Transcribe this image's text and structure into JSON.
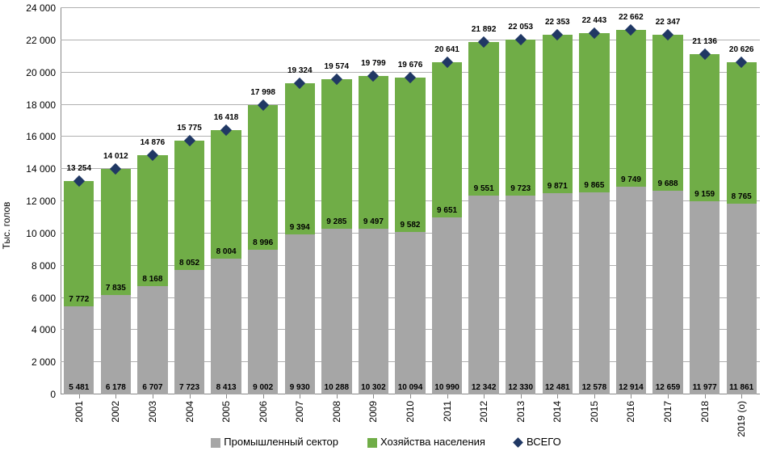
{
  "chart": {
    "type": "stacked-bar-with-marker",
    "y_axis_label": "Тыс. голов",
    "ylim": [
      0,
      24000
    ],
    "ytick_step": 2000,
    "y_tick_labels": [
      "0",
      "2 000",
      "4 000",
      "6 000",
      "8 000",
      "10 000",
      "12 000",
      "14 000",
      "16 000",
      "18 000",
      "20 000",
      "22 000",
      "24 000"
    ],
    "grid_color": "#b0b0b0",
    "background_color": "#ffffff",
    "bar_gap_ratio": 0.18,
    "label_fontsize": 12,
    "value_fontsize": 10,
    "categories": [
      "2001",
      "2002",
      "2003",
      "2004",
      "2005",
      "2006",
      "2007",
      "2008",
      "2009",
      "2010",
      "2011",
      "2012",
      "2013",
      "2014",
      "2015",
      "2016",
      "2017",
      "2018",
      "2019 (о)"
    ],
    "series": [
      {
        "name": "Промышленный сектор",
        "color": "#a6a6a6",
        "values": [
          5481,
          6178,
          6707,
          7723,
          8413,
          9002,
          9930,
          10288,
          10302,
          10094,
          10990,
          12342,
          12330,
          12481,
          12578,
          12914,
          12659,
          11977,
          11861
        ],
        "labels": [
          "5 481",
          "6 178",
          "6 707",
          "7 723",
          "8 413",
          "9 002",
          "9 930",
          "10 288",
          "10 302",
          "10 094",
          "10 990",
          "12 342",
          "12 330",
          "12 481",
          "12 578",
          "12 914",
          "12 659",
          "11 977",
          "11 861"
        ]
      },
      {
        "name": "Хозяйства населения",
        "color": "#70ad47",
        "values": [
          7772,
          7835,
          8168,
          8052,
          8004,
          8996,
          9394,
          9285,
          9497,
          9582,
          9651,
          9551,
          9723,
          9871,
          9865,
          9749,
          9688,
          9159,
          8765
        ],
        "labels": [
          "7 772",
          "7 835",
          "8 168",
          "8 052",
          "8 004",
          "8 996",
          "9 394",
          "9 285",
          "9 497",
          "9 582",
          "9 651",
          "9 551",
          "9 723",
          "9 871",
          "9 865",
          "9 749",
          "9 688",
          "9 159",
          "8 765"
        ]
      }
    ],
    "totals": {
      "name": "ВСЕГО",
      "marker_color": "#203864",
      "values": [
        13254,
        14012,
        14876,
        15775,
        16418,
        17998,
        19324,
        19574,
        19799,
        19676,
        20641,
        21892,
        22053,
        22353,
        22443,
        22662,
        22347,
        21136,
        20626
      ],
      "labels": [
        "13 254",
        "14 012",
        "14 876",
        "15 775",
        "16 418",
        "17 998",
        "19 324",
        "19 574",
        "19 799",
        "19 676",
        "20 641",
        "21 892",
        "22 053",
        "22 353",
        "22 443",
        "22 662",
        "22 347",
        "21 136",
        "20 626"
      ]
    },
    "legend": {
      "items": [
        {
          "type": "swatch",
          "color": "#a6a6a6",
          "label": "Промышленный сектор"
        },
        {
          "type": "swatch",
          "color": "#70ad47",
          "label": "Хозяйства населения"
        },
        {
          "type": "diamond",
          "color": "#203864",
          "label": "ВСЕГО"
        }
      ]
    }
  }
}
